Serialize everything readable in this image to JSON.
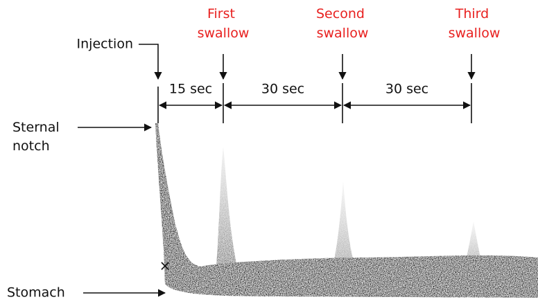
{
  "injection": "Injection",
  "swallows": [
    {
      "lines": [
        "First",
        "swallow"
      ]
    },
    {
      "lines": [
        "Second",
        "swallow"
      ]
    },
    {
      "lines": [
        "Third",
        "swallow"
      ]
    }
  ],
  "intervals": [
    "15 sec",
    "30 sec",
    "30 sec"
  ],
  "sternal_notch": {
    "lines": [
      "Sternal",
      "notch"
    ]
  },
  "stomach": "Stomach"
}
